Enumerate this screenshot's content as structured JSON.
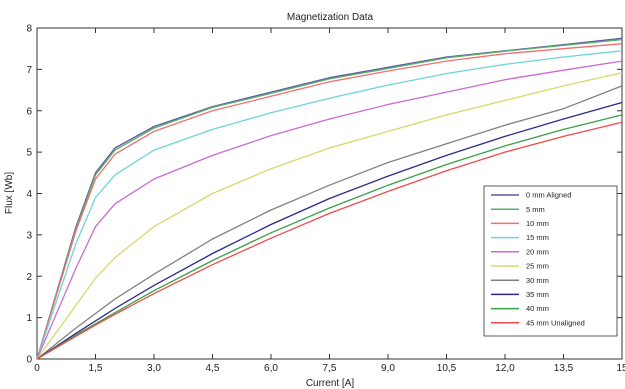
{
  "chart_data": {
    "type": "line",
    "title": "Magnetization Data",
    "xlabel": "Current [A]",
    "ylabel": "Flux [Wb]",
    "xlim": [
      0,
      15
    ],
    "ylim": [
      0,
      8
    ],
    "xticks": [
      0,
      1.5,
      3.0,
      4.5,
      6.0,
      7.5,
      9.0,
      10.5,
      12.0,
      13.5,
      15
    ],
    "xtick_labels": [
      "0",
      "1,5",
      "3,0",
      "4,5",
      "6,0",
      "7,5",
      "9,0",
      "10,5",
      "12,0",
      "13,5",
      "15"
    ],
    "yticks": [
      0,
      1,
      2,
      3,
      4,
      5,
      6,
      7,
      8
    ],
    "ytick_labels": [
      "0",
      "1",
      "2",
      "3",
      "4",
      "5",
      "6",
      "7",
      "8"
    ],
    "grid": false,
    "legend_position": "lower-right",
    "x": [
      0,
      1,
      1.5,
      2,
      3,
      4.5,
      6,
      7.5,
      9,
      10.5,
      12,
      13.5,
      15
    ],
    "series": [
      {
        "name": "0 mm Aligned",
        "color": "#5a5aa6",
        "values": [
          0,
          3.2,
          4.5,
          5.1,
          5.62,
          6.1,
          6.45,
          6.8,
          7.05,
          7.3,
          7.45,
          7.6,
          7.75
        ]
      },
      {
        "name": "5 mm",
        "color": "#59b06a",
        "values": [
          0,
          3.15,
          4.45,
          5.05,
          5.58,
          6.08,
          6.42,
          6.77,
          7.02,
          7.28,
          7.44,
          7.58,
          7.72
        ]
      },
      {
        "name": "10 mm",
        "color": "#ef7070",
        "values": [
          0,
          3.1,
          4.35,
          4.95,
          5.5,
          6.0,
          6.35,
          6.7,
          6.96,
          7.2,
          7.38,
          7.5,
          7.62
        ]
      },
      {
        "name": "15 mm",
        "color": "#6cd4dc",
        "values": [
          0,
          2.8,
          3.9,
          4.45,
          5.05,
          5.55,
          5.95,
          6.3,
          6.62,
          6.9,
          7.12,
          7.3,
          7.45
        ]
      },
      {
        "name": "20 mm",
        "color": "#cc6ad0",
        "values": [
          0,
          2.2,
          3.2,
          3.75,
          4.35,
          4.92,
          5.4,
          5.8,
          6.15,
          6.45,
          6.75,
          6.98,
          7.2
        ]
      },
      {
        "name": "25 mm",
        "color": "#d8d86a",
        "values": [
          0,
          1.3,
          1.95,
          2.45,
          3.2,
          4.0,
          4.6,
          5.1,
          5.5,
          5.9,
          6.25,
          6.6,
          6.92
        ]
      },
      {
        "name": "30 mm",
        "color": "#808080",
        "values": [
          0,
          0.75,
          1.1,
          1.45,
          2.05,
          2.9,
          3.6,
          4.2,
          4.75,
          5.2,
          5.65,
          6.05,
          6.6
        ]
      },
      {
        "name": "35 mm",
        "color": "#2a2a8a",
        "values": [
          0,
          0.62,
          0.92,
          1.22,
          1.78,
          2.55,
          3.25,
          3.88,
          4.42,
          4.92,
          5.38,
          5.8,
          6.2
        ]
      },
      {
        "name": "40 mm",
        "color": "#3aa04a",
        "values": [
          0,
          0.58,
          0.85,
          1.12,
          1.65,
          2.38,
          3.05,
          3.65,
          4.2,
          4.7,
          5.15,
          5.55,
          5.9
        ]
      },
      {
        "name": "45 mm Unaligned",
        "color": "#f04a4a",
        "values": [
          0,
          0.55,
          0.82,
          1.08,
          1.58,
          2.28,
          2.92,
          3.52,
          4.05,
          4.55,
          5.0,
          5.38,
          5.72
        ]
      }
    ]
  }
}
